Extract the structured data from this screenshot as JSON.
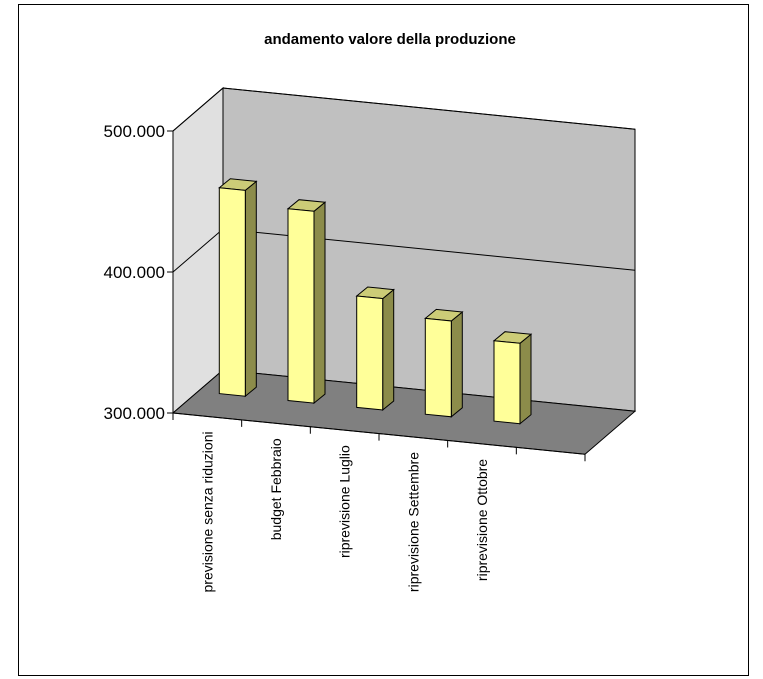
{
  "chart_data": {
    "type": "bar",
    "title": "andamento valore della produzione",
    "categories": [
      "previsione senza riduzioni",
      "budget  Febbraio",
      "riprevisione  Luglio",
      "riprevisione Settembre",
      "riprevisione Ottobre"
    ],
    "values": [
      446000,
      436000,
      379000,
      368000,
      357000
    ],
    "ylim": [
      300000,
      500000
    ],
    "y_ticks": [
      {
        "value": 300000,
        "label": "300.000"
      },
      {
        "value": 400000,
        "label": "400.000"
      },
      {
        "value": 500000,
        "label": "500.000"
      }
    ],
    "grid": true,
    "style": "3d-column"
  },
  "colors": {
    "bar_front": "#ffff99",
    "bar_side": "#8c8c4a",
    "bar_top": "#cccc77",
    "back_wall": "#c0c0c0",
    "side_wall": "#e0e0e0",
    "floor": "#808080"
  }
}
